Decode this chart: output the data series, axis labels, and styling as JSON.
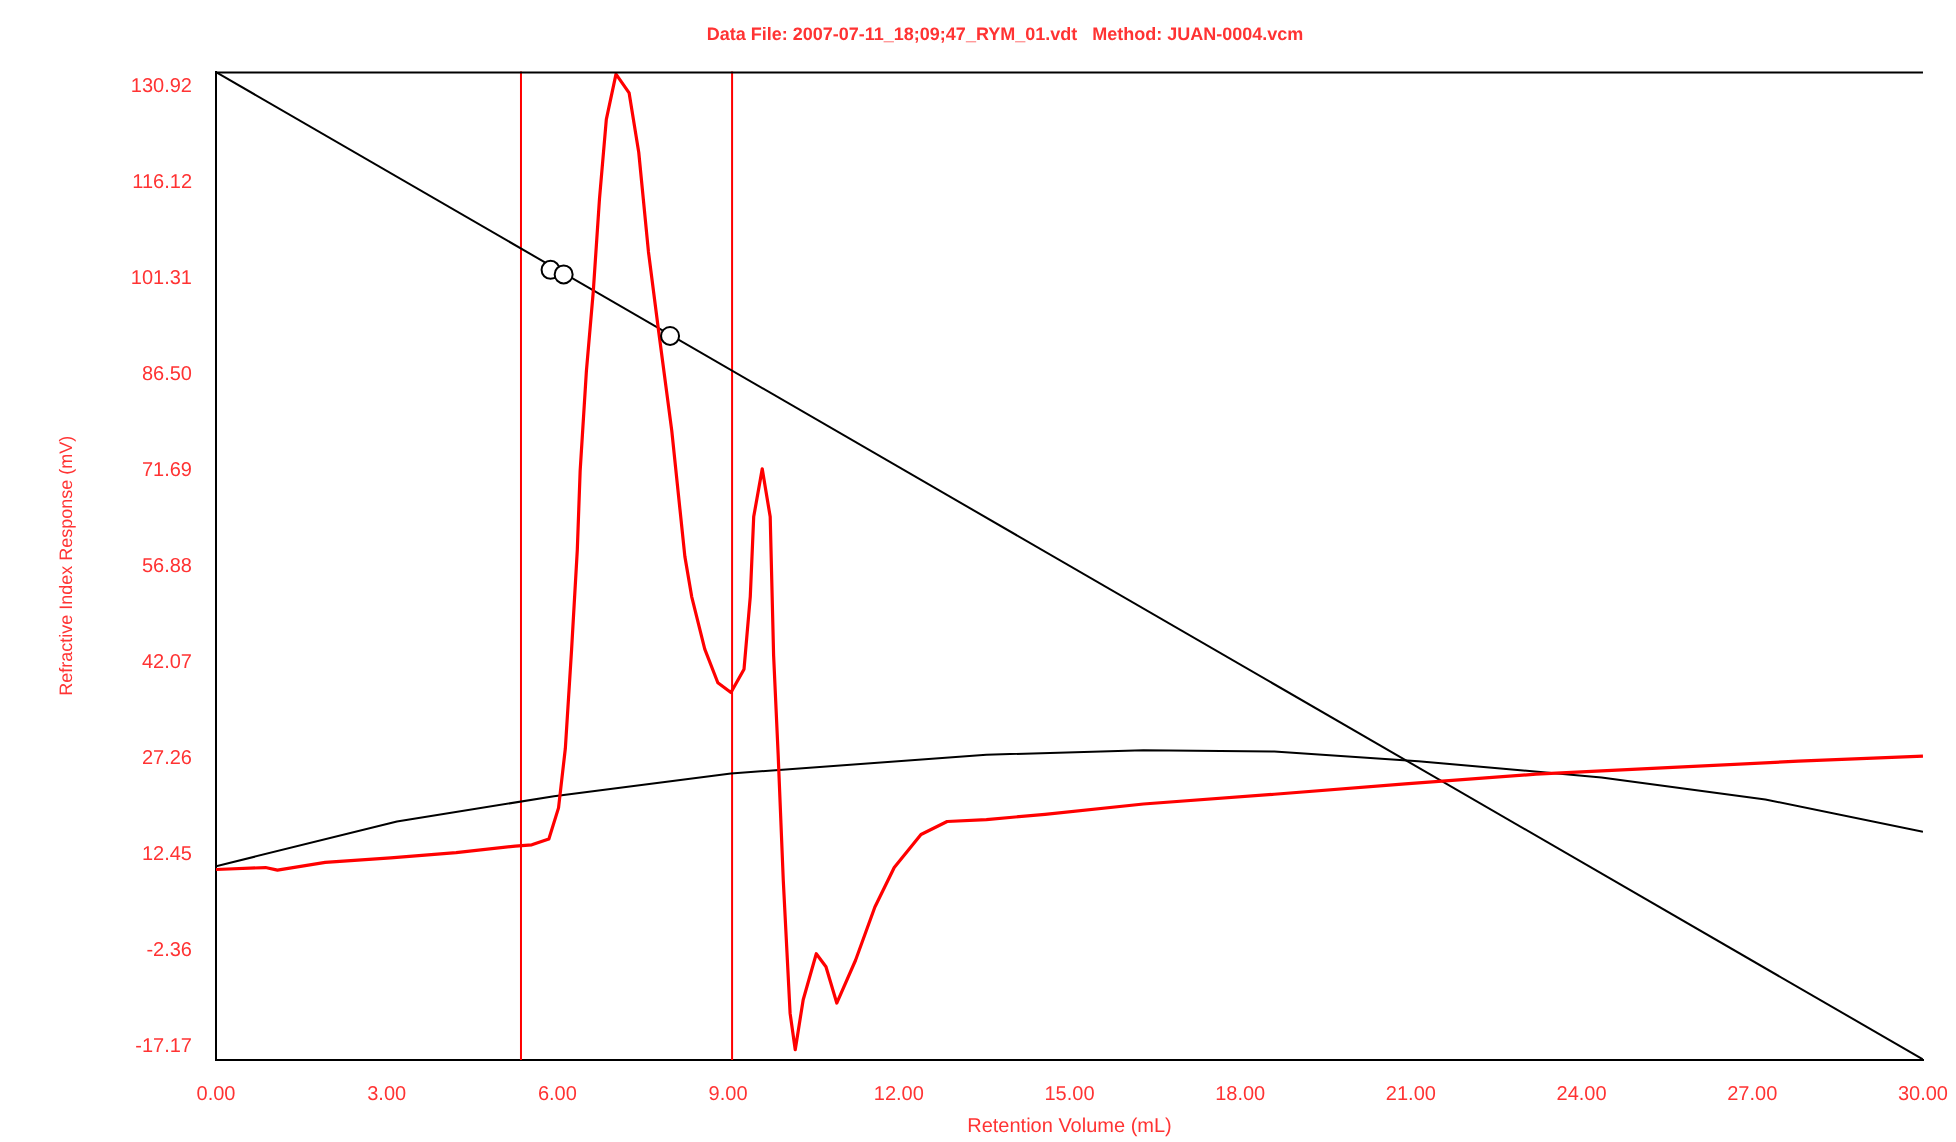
{
  "chart_data": {
    "type": "line",
    "title": "Data File: 2007-07-11_18;09;47_RYM_01.vdt   Method: JUAN-0004.vcm",
    "xlabel": "Retention Volume (mL)",
    "ylabel": "Refractive Index Response (mV)",
    "xlim": [
      0,
      30
    ],
    "ylim": [
      -19.19,
      133.28
    ],
    "xticks": [
      {
        "value": 0,
        "label": "0.00"
      },
      {
        "value": 3,
        "label": "3.00"
      },
      {
        "value": 6,
        "label": "6.00"
      },
      {
        "value": 9,
        "label": "9.00"
      },
      {
        "value": 12,
        "label": "12.00"
      },
      {
        "value": 15,
        "label": "15.00"
      },
      {
        "value": 18,
        "label": "18.00"
      },
      {
        "value": 21,
        "label": "21.00"
      },
      {
        "value": 24,
        "label": "24.00"
      },
      {
        "value": 27,
        "label": "27.00"
      },
      {
        "value": 30,
        "label": "30.00"
      }
    ],
    "yticks": [
      -17.17,
      -2.36,
      12.45,
      27.26,
      42.07,
      56.88,
      71.69,
      {
        "value": 86.5,
        "label": "86.50"
      },
      101.31,
      116.12,
      130.92
    ],
    "marker": "none",
    "line_style": "solid",
    "series": [
      {
        "color": "#ff0000",
        "x": [
          0,
          0.87,
          1.08,
          1.92,
          3.07,
          4.22,
          5.26,
          5.55,
          5.85,
          6.02,
          6.14,
          6.25,
          6.35,
          6.4,
          6.51,
          6.63,
          6.74,
          6.86,
          7.03,
          7.26,
          7.43,
          7.6,
          7.78,
          8.01,
          8.24,
          8.36,
          8.59,
          8.82,
          9.05,
          9.28,
          9.39,
          9.45,
          9.6,
          9.74,
          9.8,
          9.88,
          9.97,
          10.09,
          10.18,
          10.32,
          10.55,
          10.72,
          10.91,
          11.24,
          11.58,
          11.92,
          12.39,
          12.85,
          13.54,
          14.57,
          16.3,
          18.6,
          20.9,
          23.2,
          25.51,
          27.81,
          30
        ],
        "values": [
          10.2,
          10.5,
          10.1,
          11.3,
          12.0,
          12.8,
          13.8,
          14.0,
          14.9,
          19.7,
          28.9,
          44.2,
          59.5,
          71.7,
          87.1,
          99.3,
          113.7,
          125.9,
          132.9,
          130.0,
          120.8,
          105.5,
          93.2,
          77.9,
          58.5,
          52.3,
          44.2,
          39.0,
          37.5,
          41.1,
          52.3,
          64.6,
          72.0,
          64.6,
          43.2,
          27.9,
          8.5,
          -12.0,
          -17.6,
          -9.9,
          -2.8,
          -4.8,
          -10.4,
          -3.8,
          4.4,
          10.5,
          15.6,
          17.6,
          17.9,
          18.7,
          20.3,
          21.8,
          23.4,
          24.9,
          25.9,
          26.9,
          27.7
        ]
      },
      {
        "color": "#000000",
        "x": [
          0,
          3.18,
          5.94,
          9.05,
          13.54,
          16.3,
          18.6,
          21.13,
          24.35,
          27.23,
          30
        ],
        "values": [
          10.7,
          17.6,
          21.5,
          25.0,
          27.9,
          28.6,
          28.4,
          26.9,
          24.4,
          21.0,
          16.0
        ]
      },
      {
        "color": "#000000",
        "x": [
          0,
          30
        ],
        "values": [
          133.2,
          -19.1
        ]
      },
      {
        "type": "scatter",
        "color": "#000000",
        "marker": "circle",
        "x": [
          5.88,
          6.11,
          7.98
        ],
        "values": [
          102.7,
          102.0,
          92.5
        ]
      }
    ],
    "ref_lines": [
      {
        "axis": "x",
        "value": 5.36,
        "color": "#ff0000"
      },
      {
        "axis": "x",
        "value": 9.07,
        "color": "#ff0000"
      }
    ]
  }
}
